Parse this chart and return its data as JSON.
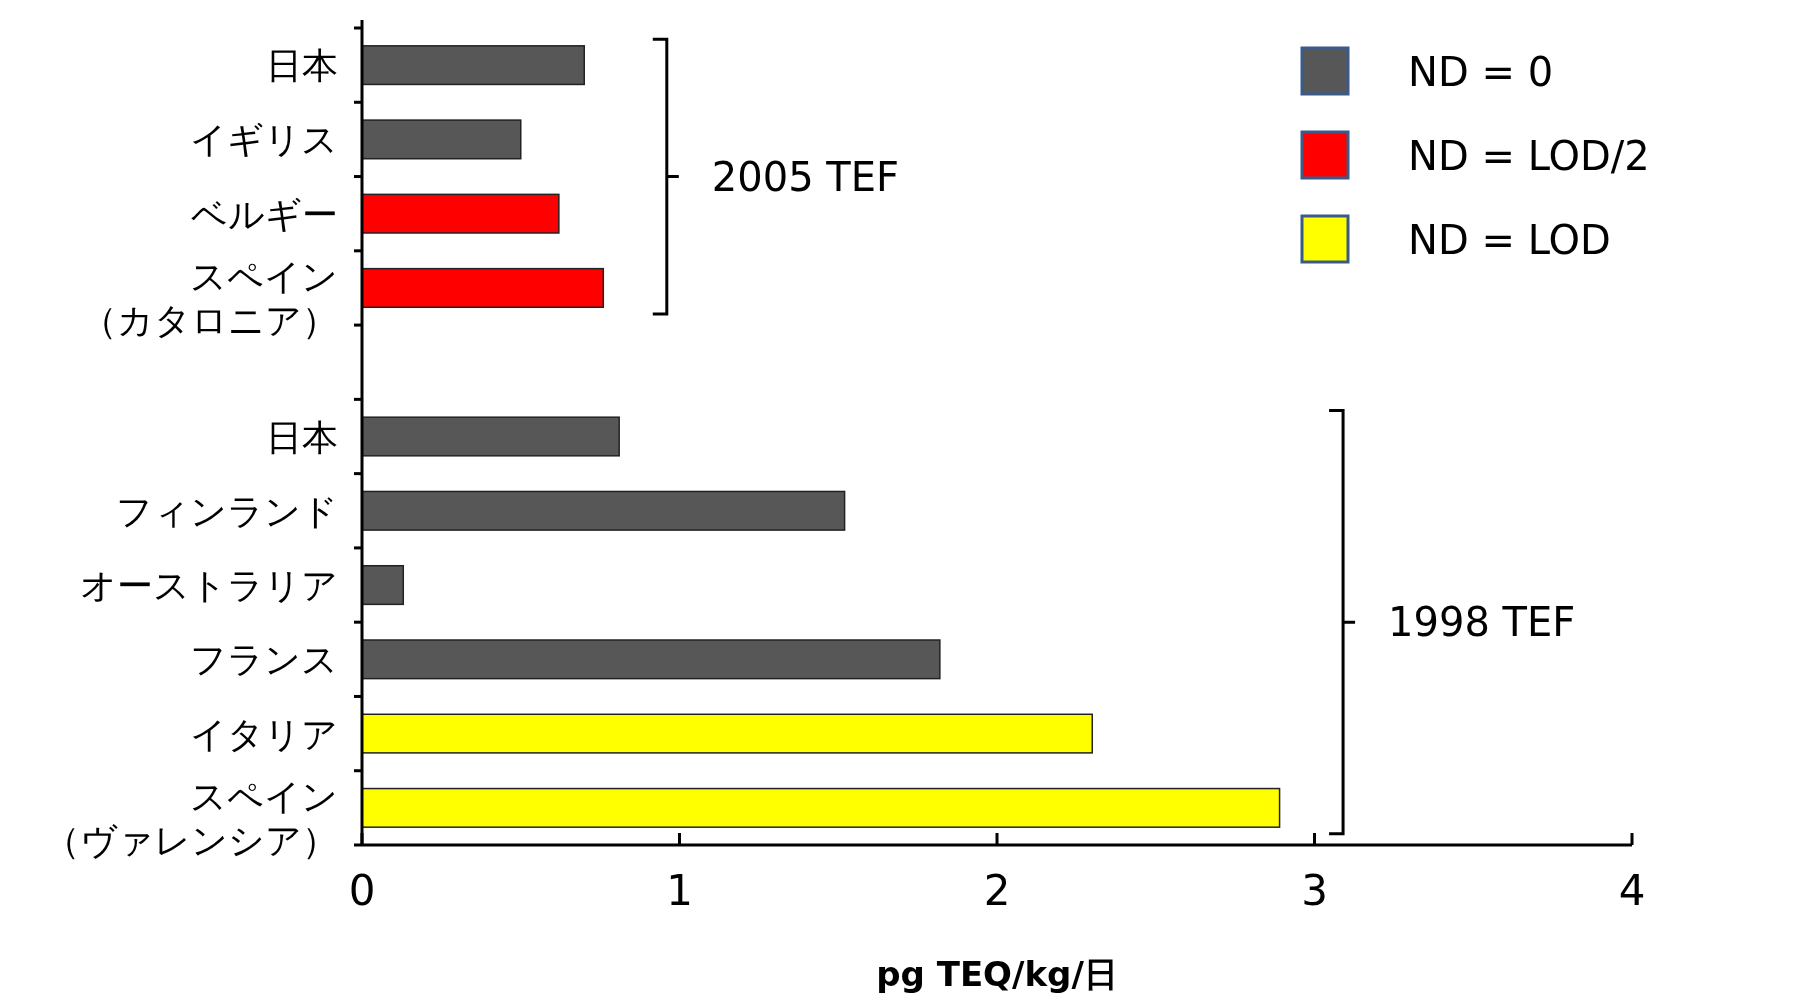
{
  "chart_data": {
    "type": "bar",
    "orientation": "horizontal",
    "categories": [
      "日本",
      "イギリス",
      "ベルギー",
      "スペイン（カタロニア）",
      null,
      "日本",
      "フィンランド",
      "オーストラリア",
      "フランス",
      "イタリア",
      "スペイン（ヴァレンシア）"
    ],
    "series": [
      {
        "name": "ND = 0",
        "color": "#575757",
        "values": [
          0.7,
          0.5,
          null,
          null,
          null,
          0.81,
          1.52,
          0.13,
          1.82,
          null,
          null
        ]
      },
      {
        "name": "ND = LOD/2",
        "color": "#ff0000",
        "values": [
          null,
          null,
          0.62,
          0.76,
          null,
          null,
          null,
          null,
          null,
          null,
          null
        ]
      },
      {
        "name": "ND = LOD",
        "color": "#ffff00",
        "values": [
          null,
          null,
          null,
          null,
          null,
          null,
          null,
          null,
          null,
          2.3,
          2.89
        ]
      }
    ],
    "xlim": [
      0,
      4
    ],
    "xticks": [
      0,
      1,
      2,
      3,
      4
    ],
    "xlabel": "pg TEQ/kg/日",
    "annotations": [
      "2005 TEF",
      "1998 TEF"
    ],
    "legend": "top right"
  }
}
